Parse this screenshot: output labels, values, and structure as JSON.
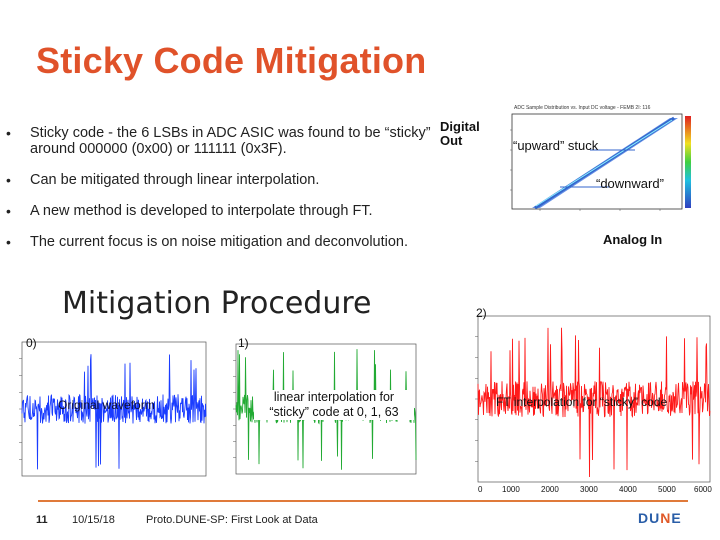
{
  "slide": {
    "title": "Sticky Code Mitigation",
    "subtitle": "Mitigation Procedure",
    "bullets": [
      "Sticky code - the 6 LSBs in ADC ASIC was found to be “sticky” around 000000 (0x00) or 111111 (0x3F).",
      "Can be mitigated through linear interpolation.",
      "A new method is developed to interpolate through FT.",
      "The current focus is on noise mitigation and deconvolution."
    ]
  },
  "adc_plot": {
    "title": "ADC Sample Distribution vs. Input DC voltage - FEMB 2I: 116",
    "y_axis_label": "Digital Out",
    "x_axis_label": "Analog In",
    "annotation_upward": "“upward” stuck",
    "annotation_downward": "“downward”"
  },
  "panels": [
    {
      "label": "0)",
      "annotation": "Original waveform",
      "color": "#1a3cff"
    },
    {
      "label": "1)",
      "annotation": "linear interpolation for “sticky” code at 0, 1, 63",
      "color": "#22aa33"
    },
    {
      "label": "2)",
      "annotation": "FT interpolation for “sticky” code",
      "color": "#ff1a1a",
      "x_ticks": [
        "0",
        "1000",
        "2000",
        "3000",
        "4000",
        "5000",
        "6000"
      ]
    }
  ],
  "footer": {
    "page_number": "11",
    "date": "10/15/18",
    "text": "Proto.DUNE-SP: First Look at Data",
    "logo": "DUNE"
  },
  "colors": {
    "title": "#e0522a",
    "footer_line": "#e07a3a",
    "logo": "#2a5ea8"
  }
}
